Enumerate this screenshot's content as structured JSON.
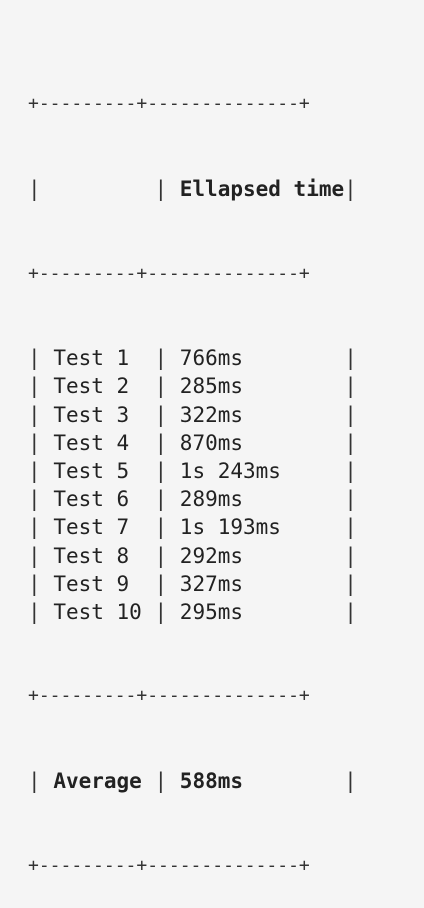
{
  "table": {
    "header": {
      "col1": "",
      "col2": "Ellapsed time"
    },
    "rows": [
      {
        "test": "Test 1",
        "time": "766ms"
      },
      {
        "test": "Test 2",
        "time": "285ms"
      },
      {
        "test": "Test 3",
        "time": "322ms"
      },
      {
        "test": "Test 4",
        "time": "870ms"
      },
      {
        "test": "Test 5",
        "time": "1s 243ms"
      },
      {
        "test": "Test 6",
        "time": "289ms"
      },
      {
        "test": "Test 7",
        "time": "1s 193ms"
      },
      {
        "test": "Test 8",
        "time": "292ms"
      },
      {
        "test": "Test 9",
        "time": "327ms"
      },
      {
        "test": "Test 10",
        "time": "295ms"
      }
    ],
    "footer": {
      "label": "Average",
      "value": "588ms"
    }
  }
}
